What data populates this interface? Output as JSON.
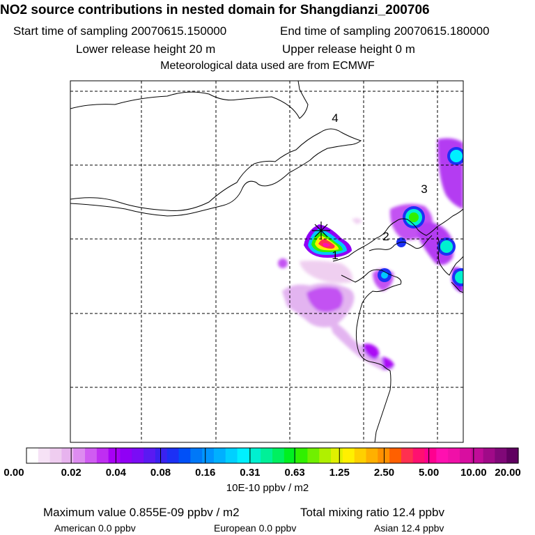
{
  "header": {
    "title": "NO2 source contributions in nested domain for Shangdianzi_200706",
    "start_label": "Start time of sampling 20070615.150000",
    "end_label": "End time of sampling 20070615.180000",
    "lower_release": "Lower release height   20 m",
    "upper_release": "Upper release height    0 m",
    "met_data": "Meteorological data used are from ECMWF"
  },
  "map": {
    "region_labels": [
      "1",
      "2",
      "3",
      "4"
    ],
    "release_site_marker": "star-cross-icon",
    "grid": true
  },
  "colorbar": {
    "tick_labels": [
      "0.00",
      "0.02",
      "0.04",
      "0.08",
      "0.16",
      "0.31",
      "0.63",
      "1.25",
      "2.50",
      "5.00",
      "10.00",
      "20.00"
    ],
    "unit": "10E-10 ppbv / m2",
    "colors": [
      "#ffffff",
      "#f6e2f6",
      "#efcdf0",
      "#e7b3ee",
      "#dd8cf0",
      "#d05cf2",
      "#bf2ef2",
      "#a700f5",
      "#9000f5",
      "#7a0cf5",
      "#5a1af2",
      "#3a22f0",
      "#1c30f5",
      "#0050f8",
      "#0078f8",
      "#0094ff",
      "#00b0ff",
      "#00d0ff",
      "#00f0ff",
      "#00f0d0",
      "#00f098",
      "#00f060",
      "#00f020",
      "#30f000",
      "#70f000",
      "#b0f000",
      "#e0f000",
      "#fff000",
      "#ffd000",
      "#ffb000",
      "#ff9000",
      "#ff6000",
      "#ff3050",
      "#ff1070",
      "#ff0090",
      "#ff10b0",
      "#f010a8",
      "#d80ea0",
      "#c00c98",
      "#a00a88",
      "#800878",
      "#600060"
    ]
  },
  "footer": {
    "max_value": "Maximum value  0.855E-09 ppbv / m2",
    "total_mixing": "Total mixing ratio       12.4 ppbv",
    "american": "American        0.0 ppbv",
    "european": "European       0.0 ppbv",
    "asian": "Asian       12.4 ppbv"
  }
}
